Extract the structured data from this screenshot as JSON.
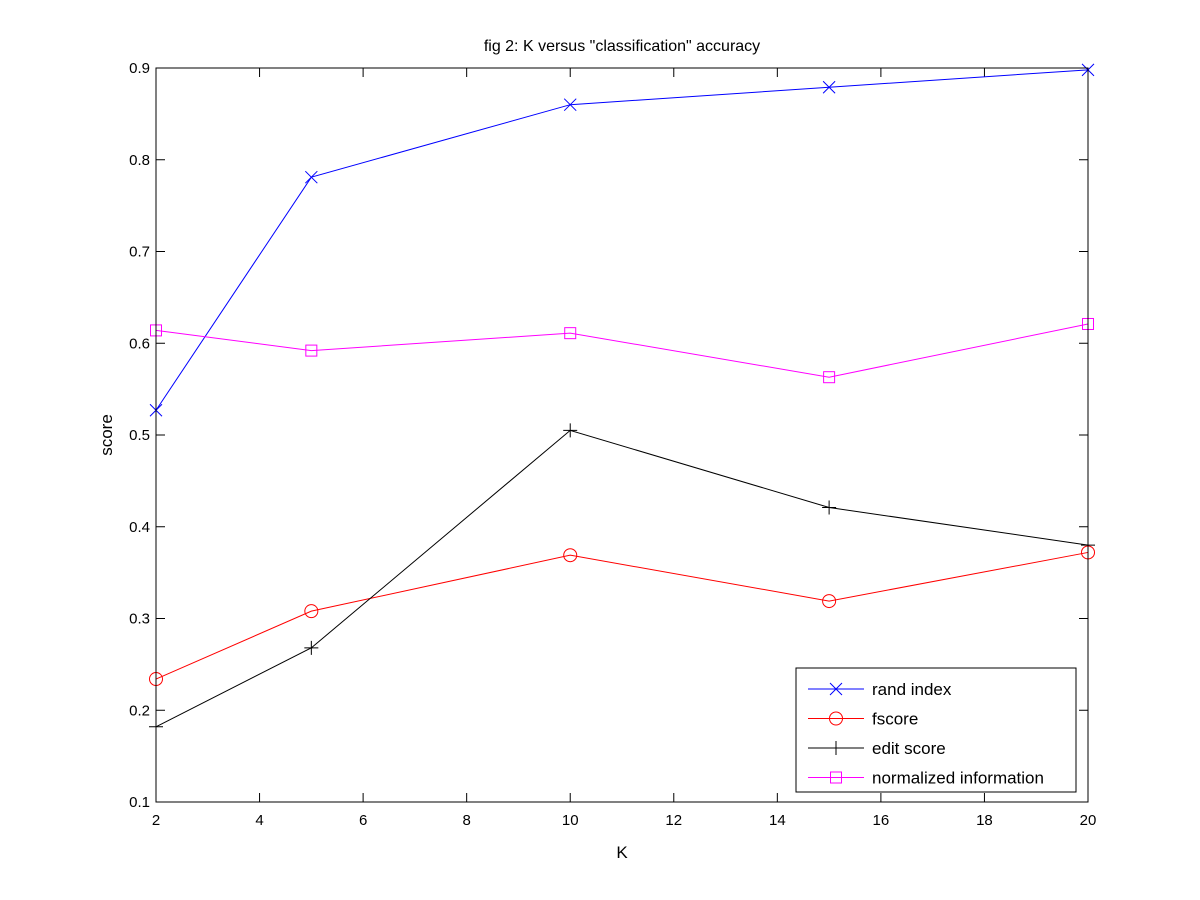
{
  "chart_data": {
    "type": "line",
    "title": "fig 2: K versus \"classification\" accuracy",
    "xlabel": "K",
    "ylabel": "score",
    "xlim": [
      2,
      20
    ],
    "ylim": [
      0.1,
      0.9
    ],
    "x_ticks": [
      2,
      4,
      6,
      8,
      10,
      12,
      14,
      16,
      18,
      20
    ],
    "y_ticks": [
      0.1,
      0.2,
      0.3,
      0.4,
      0.5,
      0.6,
      0.7,
      0.8,
      0.9
    ],
    "x": [
      2,
      5,
      10,
      15,
      20
    ],
    "grid": false,
    "legend_position": "bottom-right",
    "series": [
      {
        "name": "rand index",
        "color": "#0000ff",
        "marker": "x",
        "values": [
          0.527,
          0.781,
          0.86,
          0.879,
          0.898
        ]
      },
      {
        "name": "fscore",
        "color": "#ff0000",
        "marker": "o",
        "values": [
          0.234,
          0.308,
          0.369,
          0.319,
          0.372
        ]
      },
      {
        "name": "edit score",
        "color": "#000000",
        "marker": "+",
        "values": [
          0.182,
          0.268,
          0.505,
          0.421,
          0.38
        ]
      },
      {
        "name": "normalized information",
        "color": "#ff00ff",
        "marker": "s",
        "values": [
          0.614,
          0.592,
          0.611,
          0.563,
          0.621
        ]
      }
    ]
  }
}
